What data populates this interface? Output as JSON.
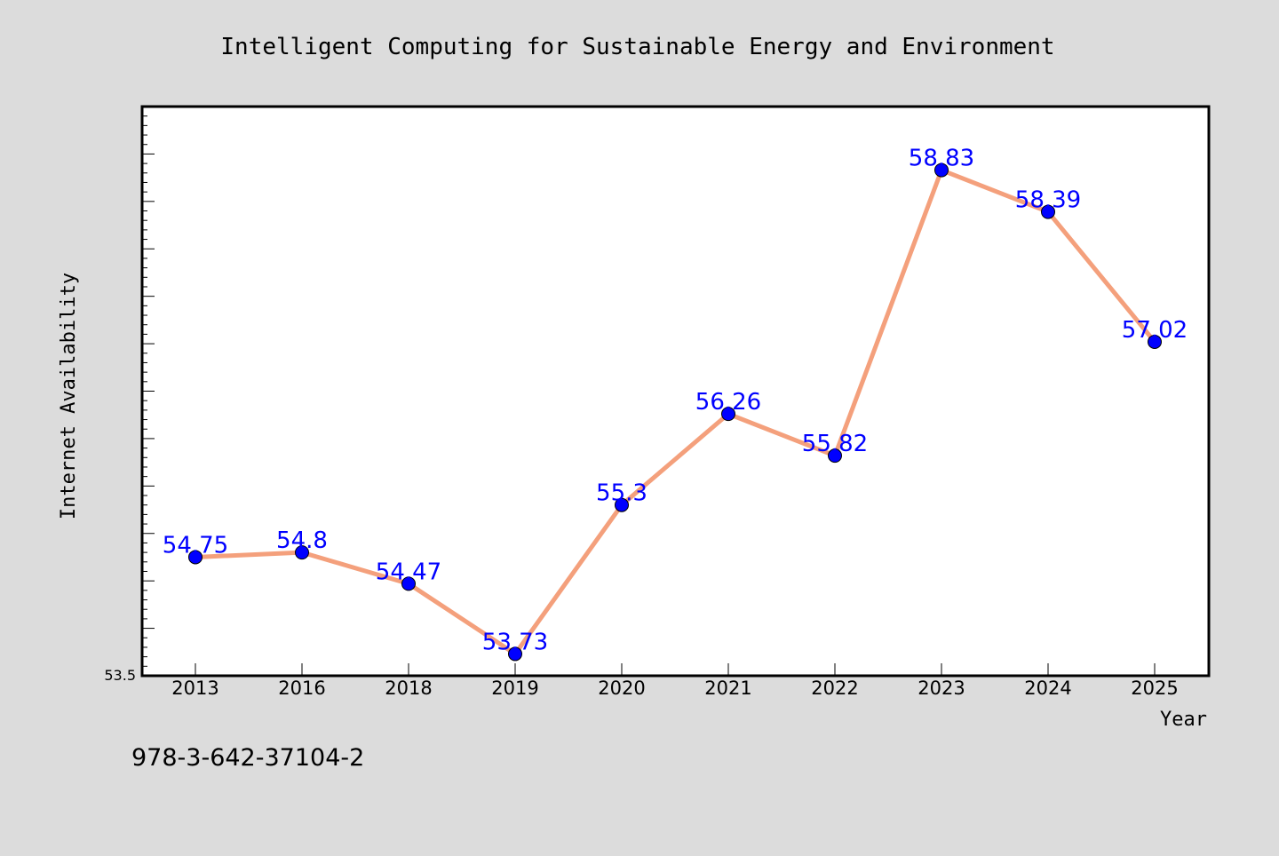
{
  "chart_data": {
    "type": "line",
    "title": "Intelligent Computing for Sustainable Energy and Environment",
    "xlabel": "Year",
    "ylabel": "Internet Availability",
    "categories": [
      "2013",
      "2016",
      "2018",
      "2019",
      "2020",
      "2021",
      "2022",
      "2023",
      "2024",
      "2025"
    ],
    "series": [
      {
        "values": [
          54.75,
          54.8,
          54.47,
          53.73,
          55.3,
          56.26,
          55.82,
          58.83,
          58.39,
          57.02
        ],
        "labels": [
          "54.75",
          "54.8",
          "54.47",
          "53.73",
          "55.3",
          "56.26",
          "55.82",
          "58.83",
          "58.39",
          "57.02"
        ],
        "line_color": "#f4a07c",
        "marker_color": "#0000ff"
      }
    ],
    "ylim": [
      53.5,
      59.5
    ],
    "y_tick_labels": [
      "53.5"
    ],
    "grid": false,
    "legend": "none"
  },
  "footer": {
    "isbn": "978-3-642-37104-2"
  },
  "colors": {
    "background": "#dcdcdc",
    "plot_background": "#ffffff"
  }
}
